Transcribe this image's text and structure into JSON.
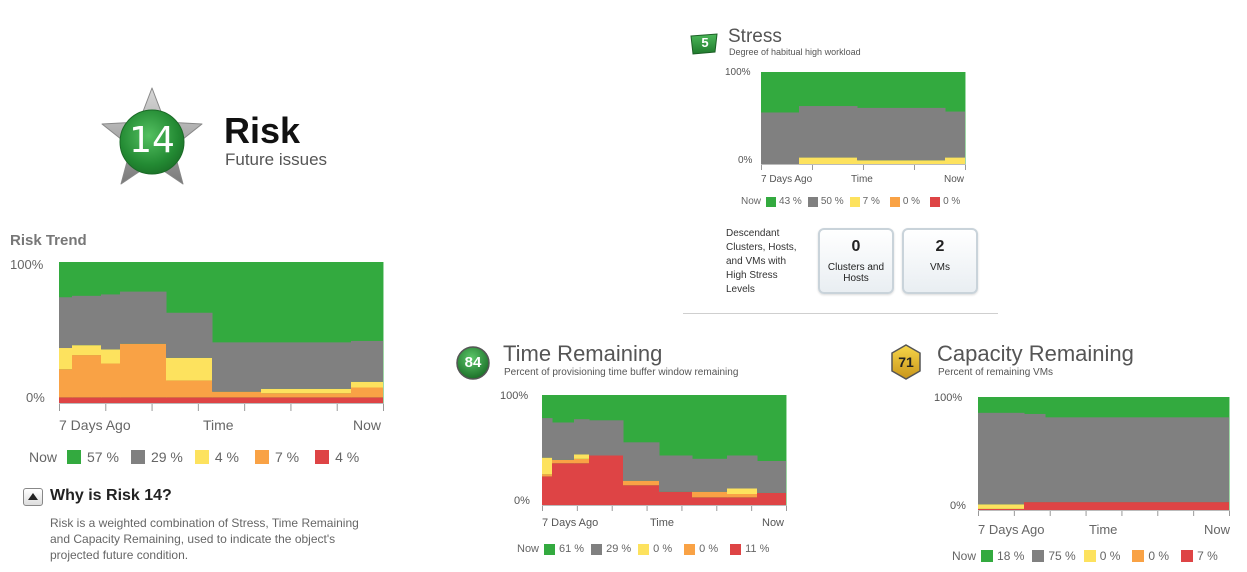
{
  "risk": {
    "score": "14",
    "title": "Risk",
    "subtitle": "Future issues",
    "trend_title": "Risk Trend",
    "why_title": "Why is Risk 14?",
    "why_text_1": "Risk is a weighted combination of Stress, Time Remaining",
    "why_text_2": "and Capacity Remaining, used to indicate the object's",
    "why_text_3": "projected future condition."
  },
  "stress": {
    "score": "5",
    "title": "Stress",
    "subtitle": "Degree of habitual high workload",
    "descendant_text": [
      "Descendant",
      "Clusters, Hosts,",
      "and VMs with",
      "High Stress",
      "Levels"
    ],
    "tiles": [
      {
        "value": "0",
        "label_1": "Clusters and",
        "label_2": "Hosts"
      },
      {
        "value": "2",
        "label_1": "VMs",
        "label_2": ""
      }
    ]
  },
  "time_remaining": {
    "score": "84",
    "title": "Time Remaining",
    "subtitle": "Percent of provisioning time buffer window remaining"
  },
  "capacity_remaining": {
    "score": "71",
    "title": "Capacity Remaining",
    "subtitle": "Percent of remaining VMs"
  },
  "colors": {
    "green": "#33aa3f",
    "gray": "#808080",
    "yellow": "#fde25e",
    "orange": "#f9a245",
    "red": "#de4445",
    "badge_green": "#2e8b3a",
    "badge_yellow": "#e8b820"
  },
  "chart_data": [
    {
      "id": "risk-trend",
      "type": "area",
      "title": "Risk Trend",
      "ytick_top": "100%",
      "ytick_bottom": "0%",
      "ylim": [
        0,
        100
      ],
      "xlabels": [
        "7 Days Ago",
        "Time",
        "Now"
      ],
      "legend_prefix": "Now",
      "legend": [
        "57 %",
        "29 %",
        "4 %",
        "7 %",
        "4 %"
      ],
      "series_order": [
        "red",
        "orange",
        "yellow",
        "gray",
        "green"
      ],
      "segments": [
        {
          "w": 13,
          "red": 4,
          "orange": 20,
          "yellow": 15,
          "gray": 36
        },
        {
          "w": 29,
          "red": 4,
          "orange": 30,
          "yellow": 7,
          "gray": 35
        },
        {
          "w": 19,
          "red": 4,
          "orange": 24,
          "yellow": 10,
          "gray": 39
        },
        {
          "w": 46,
          "red": 4,
          "orange": 38,
          "yellow": 0,
          "gray": 37
        },
        {
          "w": 46,
          "red": 4,
          "orange": 12,
          "yellow": 16,
          "gray": 32
        },
        {
          "w": 49,
          "red": 4,
          "orange": 4,
          "yellow": 0,
          "gray": 35
        },
        {
          "w": 90,
          "red": 4,
          "orange": 3,
          "yellow": 3,
          "gray": 33
        },
        {
          "w": 33,
          "red": 4,
          "orange": 7,
          "yellow": 4,
          "gray": 29
        }
      ]
    },
    {
      "id": "stress",
      "type": "area",
      "ytick_top": "100%",
      "ytick_bottom": "0%",
      "ylim": [
        0,
        100
      ],
      "xlabels": [
        "7 Days Ago",
        "Time",
        "Now"
      ],
      "legend_prefix": "Now",
      "legend": [
        "43 %",
        "50 %",
        "7 %",
        "0 %",
        "0 %"
      ],
      "series_order": [
        "red",
        "orange",
        "yellow",
        "gray",
        "green"
      ],
      "segments": [
        {
          "w": 38,
          "red": 0,
          "orange": 0,
          "yellow": 0,
          "gray": 56
        },
        {
          "w": 58,
          "red": 0,
          "orange": 0,
          "yellow": 7,
          "gray": 56
        },
        {
          "w": 88,
          "red": 0,
          "orange": 0,
          "yellow": 4,
          "gray": 57
        },
        {
          "w": 21,
          "red": 0,
          "orange": 0,
          "yellow": 7,
          "gray": 50
        }
      ]
    },
    {
      "id": "time-remaining",
      "type": "area",
      "ytick_top": "100%",
      "ytick_bottom": "0%",
      "ylim": [
        0,
        100
      ],
      "xlabels": [
        "7 Days Ago",
        "Time",
        "Now"
      ],
      "legend_prefix": "Now",
      "legend": [
        "61 %",
        "29 %",
        "0 %",
        "0 %",
        "11 %"
      ],
      "series_order": [
        "red",
        "orange",
        "yellow",
        "gray",
        "green"
      ],
      "segments": [
        {
          "w": 10,
          "red": 26,
          "orange": 2,
          "yellow": 15,
          "gray": 36
        },
        {
          "w": 22,
          "red": 38,
          "orange": 3,
          "yellow": 0,
          "gray": 34
        },
        {
          "w": 15,
          "red": 38,
          "orange": 4,
          "yellow": 4,
          "gray": 32
        },
        {
          "w": 34,
          "red": 45,
          "orange": 0,
          "yellow": 0,
          "gray": 32
        },
        {
          "w": 36,
          "red": 18,
          "orange": 4,
          "yellow": 0,
          "gray": 35
        },
        {
          "w": 33,
          "red": 12,
          "orange": 0,
          "yellow": 0,
          "gray": 33
        },
        {
          "w": 35,
          "red": 7,
          "orange": 5,
          "yellow": 0,
          "gray": 30
        },
        {
          "w": 30,
          "red": 7,
          "orange": 3,
          "yellow": 5,
          "gray": 30
        },
        {
          "w": 30,
          "red": 11,
          "orange": 0,
          "yellow": 0,
          "gray": 29
        }
      ]
    },
    {
      "id": "capacity-remaining",
      "type": "area",
      "ytick_top": "100%",
      "ytick_bottom": "0%",
      "ylim": [
        0,
        100
      ],
      "xlabels": [
        "7 Days Ago",
        "Time",
        "Now"
      ],
      "legend_prefix": "Now",
      "legend": [
        "18 %",
        "75 %",
        "0 %",
        "0 %",
        "7 %"
      ],
      "series_order": [
        "red",
        "orange",
        "yellow",
        "gray",
        "green"
      ],
      "segments": [
        {
          "w": 46,
          "red": 1,
          "orange": 0,
          "yellow": 4,
          "gray": 81
        },
        {
          "w": 21,
          "red": 7,
          "orange": 0,
          "yellow": 0,
          "gray": 78
        },
        {
          "w": 185,
          "red": 7,
          "orange": 0,
          "yellow": 0,
          "gray": 75
        }
      ]
    }
  ]
}
